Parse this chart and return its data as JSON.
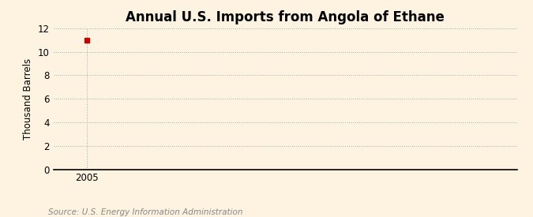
{
  "title": "Annual U.S. Imports from Angola of Ethane",
  "ylabel": "Thousand Barrels",
  "background_color": "#fdf3e0",
  "plot_background_color": "#fdf3e0",
  "data_x": [
    2005
  ],
  "data_y": [
    11
  ],
  "marker_color": "#cc0000",
  "marker_style": "s",
  "marker_size": 4,
  "xlim": [
    2004.3,
    2014.0
  ],
  "ylim": [
    0,
    12
  ],
  "yticks": [
    0,
    2,
    4,
    6,
    8,
    10,
    12
  ],
  "xticks": [
    2005
  ],
  "xticklabels": [
    "2005"
  ],
  "grid_color": "#aaaaaa",
  "grid_linestyle": ":",
  "grid_linewidth": 0.7,
  "source_text": "Source: U.S. Energy Information Administration",
  "source_fontsize": 7.5,
  "title_fontsize": 12,
  "axis_label_fontsize": 8.5,
  "tick_fontsize": 8.5
}
